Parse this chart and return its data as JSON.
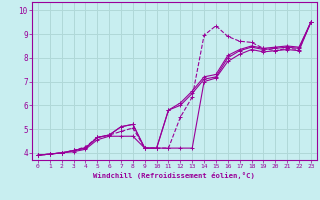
{
  "xlabel": "Windchill (Refroidissement éolien,°C)",
  "bg_color": "#c8eef0",
  "line_color": "#990099",
  "grid_color": "#b0d8d8",
  "xlim": [
    -0.5,
    23.5
  ],
  "ylim": [
    3.7,
    10.35
  ],
  "xticks": [
    0,
    1,
    2,
    3,
    4,
    5,
    6,
    7,
    8,
    9,
    10,
    11,
    12,
    13,
    14,
    15,
    16,
    17,
    18,
    19,
    20,
    21,
    22,
    23
  ],
  "yticks": [
    4,
    5,
    6,
    7,
    8,
    9,
    10
  ],
  "xvals": [
    0,
    1,
    2,
    3,
    4,
    5,
    6,
    7,
    8,
    9,
    10,
    11,
    12,
    13,
    14,
    15,
    16,
    17,
    18,
    19,
    20,
    21,
    22,
    23
  ],
  "series": [
    {
      "y": [
        3.9,
        3.95,
        4.0,
        4.1,
        4.25,
        4.65,
        4.75,
        4.9,
        5.05,
        4.2,
        4.2,
        4.2,
        5.5,
        6.35,
        8.95,
        9.35,
        8.9,
        8.7,
        8.65,
        8.4,
        8.3,
        8.4,
        8.35,
        9.5
      ],
      "style": "dashed"
    },
    {
      "y": [
        3.9,
        3.95,
        4.0,
        4.05,
        4.15,
        4.55,
        4.7,
        4.7,
        4.7,
        4.2,
        4.2,
        4.2,
        4.2,
        4.2,
        7.0,
        7.15,
        7.85,
        8.15,
        8.35,
        8.25,
        8.3,
        8.35,
        8.3,
        9.5
      ],
      "style": "solid"
    },
    {
      "y": [
        3.9,
        3.95,
        4.0,
        4.1,
        4.2,
        4.65,
        4.75,
        5.1,
        5.2,
        4.2,
        4.2,
        5.8,
        6.0,
        6.5,
        7.1,
        7.2,
        8.0,
        8.3,
        8.45,
        8.35,
        8.4,
        8.45,
        8.4,
        9.5
      ],
      "style": "solid"
    },
    {
      "y": [
        3.9,
        3.95,
        4.0,
        4.1,
        4.2,
        4.65,
        4.75,
        5.1,
        5.2,
        4.2,
        4.2,
        5.8,
        6.1,
        6.6,
        7.2,
        7.3,
        8.1,
        8.35,
        8.5,
        8.4,
        8.45,
        8.5,
        8.45,
        9.5
      ],
      "style": "solid"
    }
  ]
}
